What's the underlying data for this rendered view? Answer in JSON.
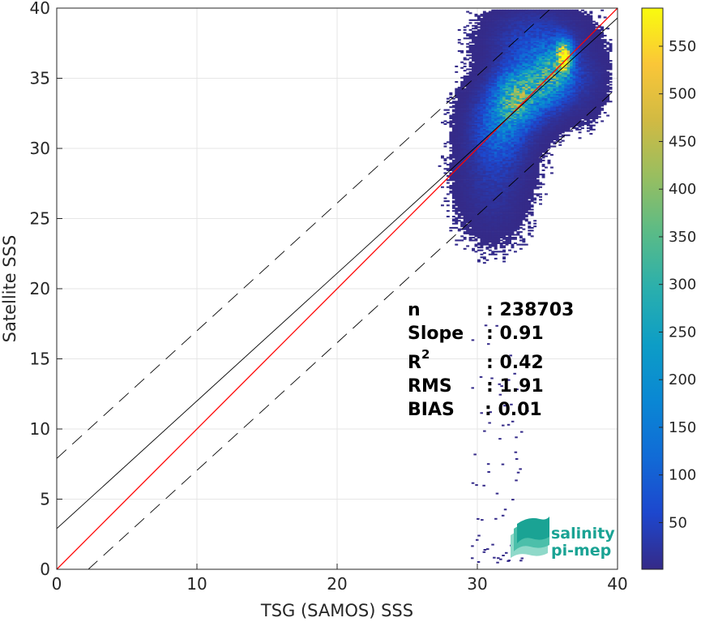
{
  "chart_data": {
    "type": "heatmap",
    "title": "",
    "xlabel": "TSG (SAMOS) SSS",
    "ylabel": "Satellite SSS",
    "xlim": [
      0,
      40
    ],
    "ylim": [
      0,
      40
    ],
    "xticks": [
      0,
      10,
      20,
      30,
      40
    ],
    "yticks": [
      0,
      5,
      10,
      15,
      20,
      25,
      30,
      35,
      40
    ],
    "grid": true,
    "colorbar": {
      "colormap": "parula",
      "range": [
        1,
        590
      ],
      "ticks": [
        50,
        100,
        150,
        200,
        250,
        300,
        350,
        400,
        450,
        500,
        550
      ]
    },
    "density_clusters": [
      {
        "x": 31.5,
        "y": 31.5,
        "sx": 1.1,
        "sy": 1.6,
        "peak": 120
      },
      {
        "x": 32.5,
        "y": 33.3,
        "sx": 0.9,
        "sy": 1.2,
        "peak": 230
      },
      {
        "x": 33.6,
        "y": 34.3,
        "sx": 1.1,
        "sy": 1.3,
        "peak": 200
      },
      {
        "x": 35.3,
        "y": 35.3,
        "sx": 0.9,
        "sy": 1.2,
        "peak": 260
      },
      {
        "x": 36.1,
        "y": 36.5,
        "sx": 0.35,
        "sy": 0.7,
        "peak": 560
      },
      {
        "x": 34.0,
        "y": 37.5,
        "sx": 1.6,
        "sy": 1.2,
        "peak": 60
      },
      {
        "x": 31.0,
        "y": 28.0,
        "sx": 1.2,
        "sy": 2.0,
        "peak": 25
      },
      {
        "x": 37.5,
        "y": 35.0,
        "sx": 0.8,
        "sy": 1.3,
        "peak": 20
      }
    ],
    "reference_lines": [
      {
        "name": "1:1",
        "color": "#ff0000",
        "style": "solid",
        "slope": 1,
        "intercept": 0
      },
      {
        "name": "fit",
        "color": "#000000",
        "style": "solid",
        "slope": 0.91,
        "intercept": 2.9
      },
      {
        "name": "fit+2rms",
        "color": "#000000",
        "style": "dashed",
        "slope": 0.91,
        "intercept": 7.9
      },
      {
        "name": "fit-2rms",
        "color": "#000000",
        "style": "dashed",
        "slope": 0.91,
        "intercept": -2.05
      }
    ],
    "stats": [
      {
        "label": "n",
        "value": ": 238703"
      },
      {
        "label": "Slope",
        "value": ": 0.91"
      },
      {
        "label": "R",
        "sup": "2",
        "value": ": 0.42"
      },
      {
        "label": "RMS",
        "value": ": 1.91"
      },
      {
        "label": "BIAS",
        "value": ": 0.01"
      }
    ]
  },
  "logo": {
    "line1": "salinity",
    "line2": "pi-mep",
    "color": "#1aa394"
  }
}
